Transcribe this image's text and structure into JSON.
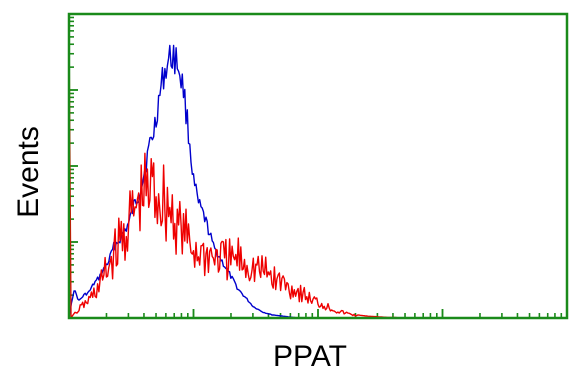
{
  "chart_data": {
    "type": "histogram",
    "title": "",
    "xlabel": "PPAT",
    "ylabel": "Events",
    "x_scale": "log",
    "xlim": [
      0,
      1
    ],
    "ylim": [
      0,
      1
    ],
    "grid": false,
    "legend": "none",
    "frame_color": "#1a8a1a",
    "series": [
      {
        "color": "#0000cc",
        "style": "outline",
        "x": [
          0.0,
          0.01,
          0.02,
          0.03,
          0.04,
          0.05,
          0.06,
          0.07,
          0.08,
          0.09,
          0.1,
          0.11,
          0.12,
          0.13,
          0.14,
          0.15,
          0.16,
          0.17,
          0.18,
          0.19,
          0.2,
          0.21,
          0.22,
          0.23,
          0.24,
          0.25,
          0.26,
          0.27,
          0.28,
          0.29,
          0.3,
          0.31,
          0.32,
          0.33,
          0.34,
          0.35,
          0.36,
          0.37,
          0.38,
          0.39,
          0.4,
          0.41,
          0.42,
          0.43,
          0.44,
          0.45,
          0.46
        ],
        "y": [
          0.0,
          0.1,
          0.06,
          0.08,
          0.09,
          0.12,
          0.14,
          0.17,
          0.2,
          0.25,
          0.27,
          0.3,
          0.33,
          0.39,
          0.43,
          0.5,
          0.59,
          0.65,
          0.76,
          0.85,
          0.9,
          0.92,
          0.88,
          0.8,
          0.65,
          0.48,
          0.4,
          0.36,
          0.31,
          0.25,
          0.22,
          0.19,
          0.16,
          0.13,
          0.1,
          0.08,
          0.06,
          0.04,
          0.03,
          0.02,
          0.015,
          0.01,
          0.008,
          0.006,
          0.004,
          0.002,
          0.0
        ]
      },
      {
        "color": "#ee0000",
        "style": "outline",
        "x": [
          0.0,
          0.004,
          0.02,
          0.03,
          0.04,
          0.05,
          0.06,
          0.07,
          0.08,
          0.09,
          0.1,
          0.11,
          0.12,
          0.13,
          0.14,
          0.15,
          0.16,
          0.17,
          0.18,
          0.19,
          0.2,
          0.21,
          0.22,
          0.23,
          0.24,
          0.25,
          0.26,
          0.27,
          0.28,
          0.29,
          0.3,
          0.31,
          0.32,
          0.33,
          0.34,
          0.35,
          0.36,
          0.37,
          0.38,
          0.39,
          0.4,
          0.41,
          0.42,
          0.43,
          0.44,
          0.45,
          0.46,
          0.47,
          0.48,
          0.49,
          0.5,
          0.51,
          0.52,
          0.53,
          0.54,
          0.55,
          0.56,
          0.57,
          0.58,
          0.59,
          0.6,
          0.61,
          0.62,
          0.63,
          0.64,
          0.65,
          0.66,
          0.67,
          0.68,
          0.69,
          0.7
        ],
        "y": [
          0.96,
          0.0,
          0.04,
          0.06,
          0.08,
          0.11,
          0.14,
          0.19,
          0.23,
          0.29,
          0.33,
          0.38,
          0.42,
          0.47,
          0.51,
          0.55,
          0.57,
          0.58,
          0.56,
          0.53,
          0.5,
          0.46,
          0.42,
          0.38,
          0.34,
          0.31,
          0.3,
          0.29,
          0.28,
          0.28,
          0.27,
          0.27,
          0.26,
          0.26,
          0.27,
          0.25,
          0.24,
          0.23,
          0.22,
          0.21,
          0.2,
          0.18,
          0.17,
          0.16,
          0.14,
          0.13,
          0.12,
          0.11,
          0.09,
          0.08,
          0.07,
          0.06,
          0.05,
          0.04,
          0.03,
          0.025,
          0.02,
          0.015,
          0.01,
          0.008,
          0.006,
          0.005,
          0.004,
          0.003,
          0.002,
          0.002,
          0.001,
          0.001,
          0.0,
          0.0,
          0.0
        ]
      }
    ]
  }
}
